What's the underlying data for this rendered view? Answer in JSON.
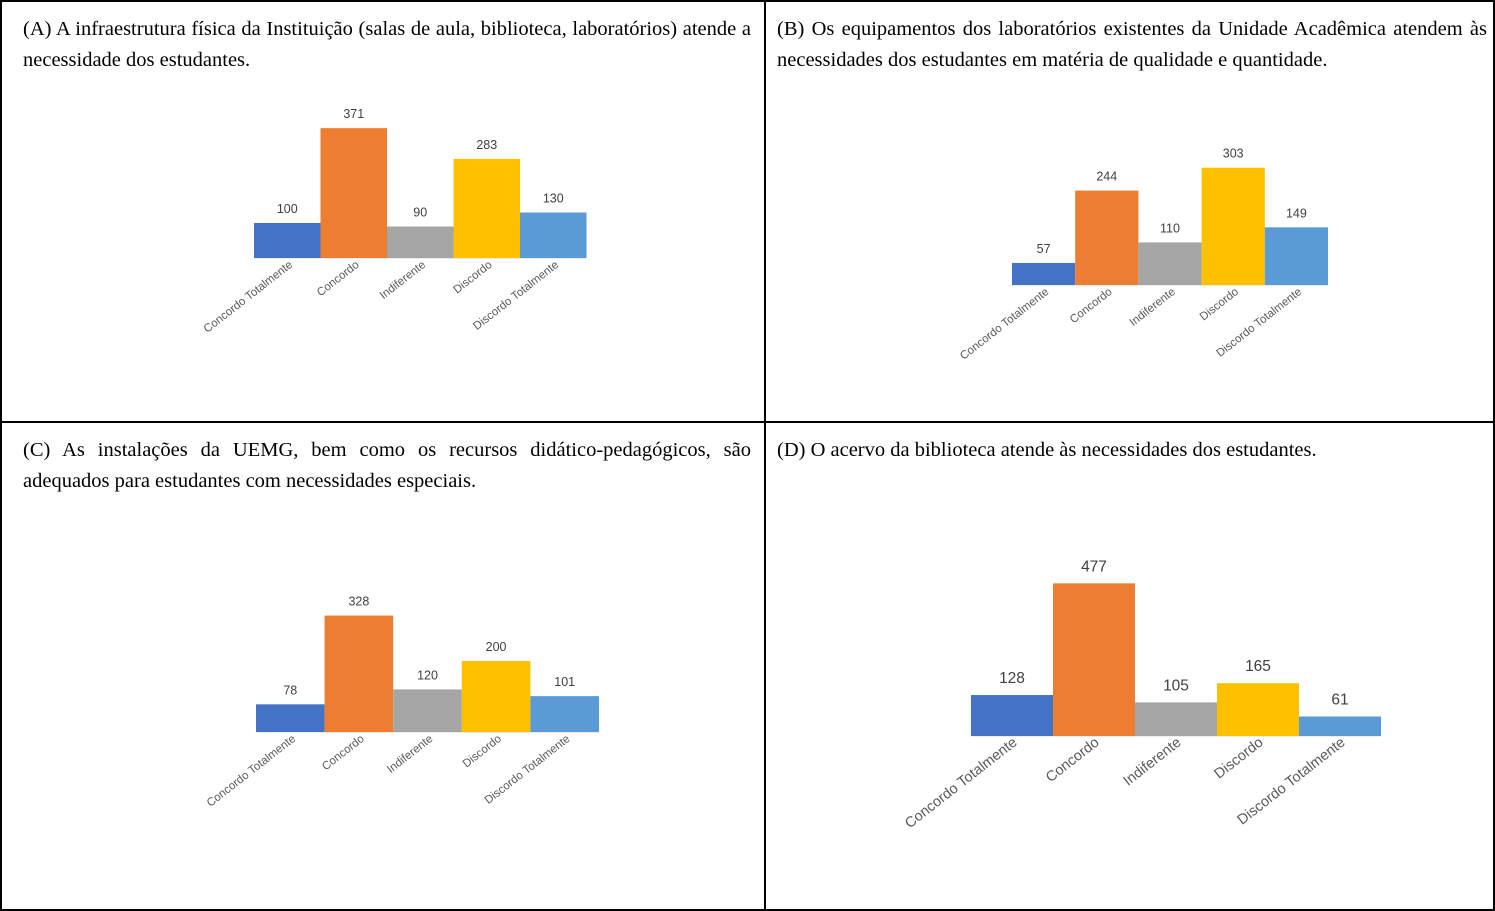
{
  "panels": [
    {
      "caption": "(A) A infraestrutura física da Instituição (salas de aula, biblioteca, laboratórios) atende a necessidade dos estudantes."
    },
    {
      "caption": "(B) Os equipamentos dos laboratórios existentes da Unidade Acadêmica atendem às necessidades dos estudantes em matéria de qualidade e quantidade."
    },
    {
      "caption": "(C) As instalações da UEMG, bem como os recursos didático-pedagógicos, são adequados para estudantes com necessidades especiais."
    },
    {
      "caption": "(D) O acervo da biblioteca atende às necessidades dos estudantes."
    }
  ],
  "colors": [
    "#4472C4",
    "#ED7D31",
    "#A5A5A5",
    "#FFC000",
    "#5B9BD5"
  ],
  "chart_data": [
    {
      "type": "bar",
      "categories": [
        "Concordo Totalmente",
        "Concordo",
        "Indiferente",
        "Discordo",
        "Discordo Totalmente"
      ],
      "values": [
        100,
        371,
        90,
        283,
        130
      ],
      "title": "",
      "xlabel": "",
      "ylabel": "",
      "grid": false,
      "legend": "none"
    },
    {
      "type": "bar",
      "categories": [
        "Concordo Totalmente",
        "Concordo",
        "Indiferente",
        "Discordo",
        "Discordo Totalmente"
      ],
      "values": [
        57,
        244,
        110,
        303,
        149
      ],
      "title": "",
      "xlabel": "",
      "ylabel": "",
      "grid": false,
      "legend": "none"
    },
    {
      "type": "bar",
      "categories": [
        "Concordo Totalmente",
        "Concordo",
        "Indiferente",
        "Discordo",
        "Discordo Totalmente"
      ],
      "values": [
        78,
        328,
        120,
        200,
        101
      ],
      "title": "",
      "xlabel": "",
      "ylabel": "",
      "grid": false,
      "legend": "none"
    },
    {
      "type": "bar",
      "categories": [
        "Concordo Totalmente",
        "Concordo",
        "Indiferente",
        "Discordo",
        "Discordo Totalmente"
      ],
      "values": [
        128,
        477,
        105,
        165,
        61
      ],
      "title": "",
      "xlabel": "",
      "ylabel": "",
      "grid": false,
      "legend": "none"
    }
  ]
}
